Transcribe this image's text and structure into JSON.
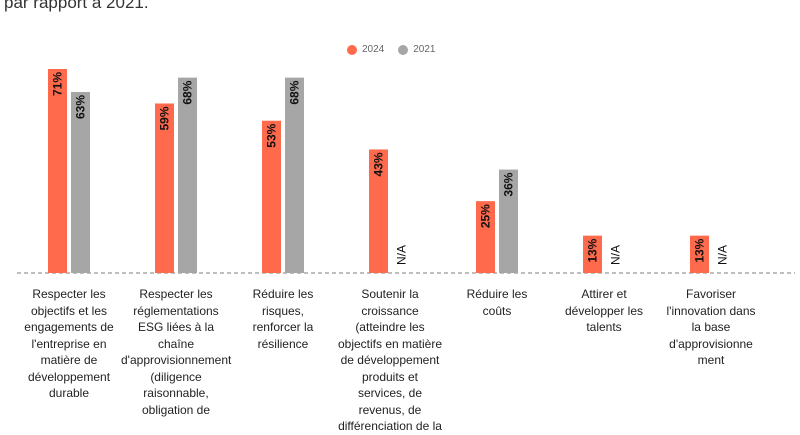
{
  "header": {
    "text": "par rapport à 2021."
  },
  "chart_data": {
    "type": "bar",
    "categories": [
      "Respecter les\nobjectifs et les\nengagements de\nl'entreprise en\nmatière de\ndéveloppement\ndurable",
      "Respecter les\nréglementations\nESG liées à la\nchaîne\nd'approvisionnement\n(diligence\nraisonnable,\nobligation de",
      "Réduire les\nrisques,\nrenforcer la\nrésilience",
      "Soutenir la\ncroissance\n(atteindre les\nobjectifs en matière\nde développement\nproduits et\nservices, de\nrevenus, de\ndifférenciation de la",
      "Réduire les\ncoûts",
      "Attirer et\ndévelopper les\ntalents",
      "Favoriser\nl'innovation dans\nla base\nd'approvisionne\nment"
    ],
    "series": [
      {
        "name": "2024",
        "color": "#FF6A4D",
        "values": [
          71,
          59,
          53,
          43,
          25,
          13,
          13
        ],
        "labels": [
          "71%",
          "59%",
          "53%",
          "43%",
          "25%",
          "13%",
          "13%"
        ]
      },
      {
        "name": "2021",
        "color": "#A6A6A6",
        "values": [
          63,
          68,
          68,
          null,
          36,
          null,
          null
        ],
        "labels": [
          "63%",
          "68%",
          "68%",
          "N/A",
          "36%",
          "N/A",
          "N/A"
        ]
      }
    ],
    "ylim": [
      0,
      71
    ],
    "legend_position": "top-center"
  }
}
